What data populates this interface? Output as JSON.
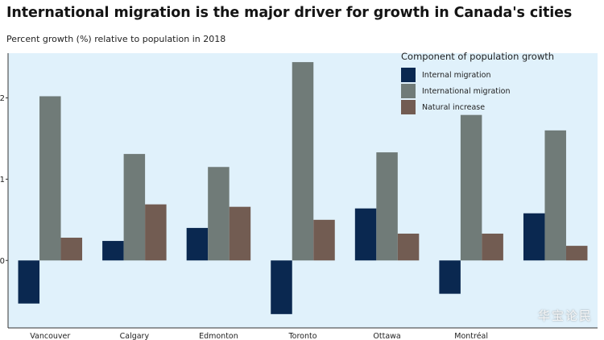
{
  "header": {
    "title": "International migration is the major driver for growth in Canada's cities",
    "subtitle": "Percent growth (%) relative to population in 2018"
  },
  "legend": {
    "title": "Component of population growth",
    "items": [
      {
        "label": "Internal migration",
        "color": "#0a2850"
      },
      {
        "label": "International migration",
        "color": "#707b78"
      },
      {
        "label": "Natural increase",
        "color": "#725c52"
      }
    ]
  },
  "colors": {
    "plot_background": "#e0f1fb",
    "axis": "#333333"
  },
  "watermark": "华宝论民",
  "chart_data": {
    "type": "bar",
    "title": "International migration is the major driver for growth in Canada's cities",
    "subtitle": "Percent growth (%) relative to population in 2018",
    "xlabel": "",
    "ylabel": "",
    "categories": [
      "Vancouver",
      "Calgary",
      "Edmonton",
      "Toronto",
      "Ottawa",
      "Montréal",
      ""
    ],
    "yticks": [
      0,
      1,
      2
    ],
    "ytick_labels": [
      "0",
      "1",
      "2"
    ],
    "ylim": [
      -0.83,
      2.55
    ],
    "grid": false,
    "legend_position": "top-right",
    "series": [
      {
        "name": "Internal migration",
        "color": "#0a2850",
        "values": [
          -0.53,
          0.24,
          0.4,
          -0.66,
          0.64,
          -0.41,
          0.58
        ]
      },
      {
        "name": "International migration",
        "color": "#707b78",
        "values": [
          2.02,
          1.31,
          1.15,
          2.44,
          1.33,
          1.79,
          1.6
        ]
      },
      {
        "name": "Natural increase",
        "color": "#725c52",
        "values": [
          0.28,
          0.69,
          0.66,
          0.5,
          0.33,
          0.33,
          0.18
        ]
      }
    ]
  }
}
